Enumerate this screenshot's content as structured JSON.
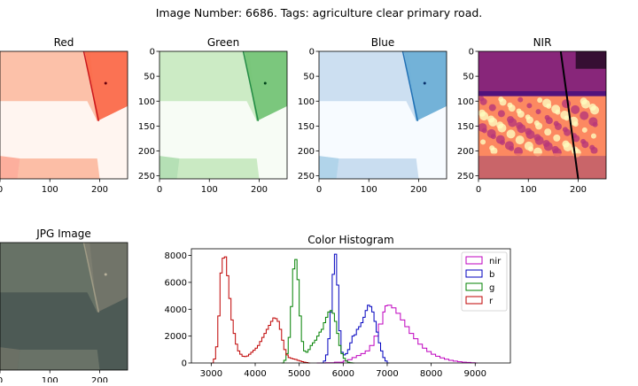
{
  "figure": {
    "suptitle": "Image Number: 6686. Tags: agriculture clear primary road."
  },
  "panels": [
    {
      "title": "Red",
      "yticks": [
        "0",
        "50",
        "100",
        "150",
        "200",
        "250"
      ],
      "xticks": [
        "0",
        "100",
        "200"
      ],
      "ramp": [
        "#fff5f0",
        "#fcbba1",
        "#fb6a4a",
        "#cb181d",
        "#67000d"
      ]
    },
    {
      "title": "Green",
      "yticks": [
        "0",
        "50",
        "100",
        "150",
        "200",
        "250"
      ],
      "xticks": [
        "0",
        "100",
        "200"
      ],
      "ramp": [
        "#f7fcf5",
        "#c7e9c0",
        "#74c476",
        "#238b45",
        "#00441b"
      ]
    },
    {
      "title": "Blue",
      "yticks": [
        "0",
        "50",
        "100",
        "150",
        "200",
        "250"
      ],
      "xticks": [
        "0",
        "100",
        "200"
      ],
      "ramp": [
        "#f7fbff",
        "#c6dbef",
        "#6baed6",
        "#2171b5",
        "#08306b"
      ]
    },
    {
      "title": "NIR",
      "yticks": [
        "0",
        "50",
        "100",
        "150",
        "200",
        "250"
      ],
      "xticks": [
        "0",
        "100",
        "200"
      ],
      "ramp": [
        "#000004",
        "#51127c",
        "#b73779",
        "#fc8961",
        "#fcfdbf"
      ]
    },
    {
      "title": "JPG Image",
      "xticks": [
        "0",
        "100",
        "200"
      ],
      "ramp": [
        "#4d5a55",
        "#6a7468",
        "#8a8676",
        "#a09c86",
        "#b9b29c"
      ]
    }
  ],
  "chart_data": {
    "type": "line",
    "title": "Color Histogram",
    "xlabel": "",
    "ylabel": "",
    "xlim": [
      2550,
      9800
    ],
    "ylim": [
      0,
      8500
    ],
    "xticks": [
      "3000",
      "4000",
      "5000",
      "6000",
      "7000",
      "8000",
      "9000"
    ],
    "yticks": [
      "0",
      "2000",
      "4000",
      "6000",
      "8000"
    ],
    "legend_position": "upper right",
    "series": [
      {
        "name": "nir",
        "color": "#bf00bf",
        "x": [
          5400,
          5600,
          5800,
          6000,
          6100,
          6200,
          6300,
          6400,
          6500,
          6600,
          6700,
          6800,
          6900,
          6950,
          7000,
          7100,
          7200,
          7300,
          7400,
          7500,
          7600,
          7700,
          7800,
          7900,
          8000,
          8100,
          8200,
          8300,
          8400,
          8500,
          8600,
          8700,
          8800,
          8900,
          9000
        ],
        "values": [
          0,
          20,
          60,
          150,
          250,
          400,
          550,
          700,
          900,
          1300,
          2000,
          2900,
          3800,
          4250,
          4300,
          4100,
          3700,
          3200,
          2700,
          2200,
          1800,
          1400,
          1100,
          850,
          650,
          500,
          380,
          280,
          200,
          140,
          90,
          60,
          40,
          20,
          0
        ]
      },
      {
        "name": "b",
        "color": "#0000bf",
        "x": [
          5500,
          5550,
          5600,
          5650,
          5700,
          5750,
          5800,
          5850,
          5900,
          5950,
          6000,
          6050,
          6100,
          6150,
          6200,
          6250,
          6300,
          6350,
          6400,
          6450,
          6500,
          6550,
          6600,
          6650,
          6700,
          6750,
          6800,
          6850,
          6900,
          6950,
          7000
        ],
        "values": [
          0,
          150,
          600,
          1800,
          3800,
          6600,
          8100,
          5800,
          2400,
          800,
          600,
          700,
          1000,
          1500,
          2000,
          2100,
          2500,
          2700,
          3000,
          3400,
          3900,
          4300,
          4200,
          3800,
          3100,
          2300,
          1500,
          900,
          400,
          150,
          0
        ]
      },
      {
        "name": "g",
        "color": "#008000",
        "x": [
          4600,
          4650,
          4700,
          4750,
          4800,
          4850,
          4900,
          4950,
          5000,
          5050,
          5100,
          5150,
          5200,
          5250,
          5300,
          5350,
          5400,
          5450,
          5500,
          5550,
          5600,
          5650,
          5700,
          5750,
          5800,
          5850,
          5900,
          5950,
          6000,
          6050,
          6100,
          6150,
          6200
        ],
        "values": [
          0,
          200,
          700,
          1900,
          4200,
          7000,
          7700,
          6200,
          3500,
          1600,
          900,
          800,
          1000,
          1300,
          1500,
          1700,
          2000,
          2300,
          2500,
          3000,
          3400,
          3800,
          3900,
          3700,
          3100,
          2200,
          1300,
          700,
          350,
          150,
          50,
          20,
          0
        ]
      },
      {
        "name": "r",
        "color": "#bf0000",
        "x": [
          3000,
          3050,
          3100,
          3150,
          3200,
          3250,
          3300,
          3350,
          3400,
          3450,
          3500,
          3550,
          3600,
          3650,
          3700,
          3750,
          3800,
          3850,
          3900,
          3950,
          4000,
          4050,
          4100,
          4150,
          4200,
          4250,
          4300,
          4350,
          4400,
          4450,
          4500,
          4550,
          4600,
          4650,
          4700,
          4750,
          4800,
          4850,
          4900,
          4950,
          5000,
          5050,
          5100,
          5150,
          5200
        ],
        "values": [
          0,
          300,
          1200,
          3500,
          6700,
          7800,
          7900,
          6500,
          4800,
          3200,
          2200,
          1400,
          900,
          650,
          500,
          480,
          520,
          650,
          800,
          950,
          1100,
          1300,
          1600,
          1900,
          2200,
          2500,
          2800,
          3100,
          3350,
          3300,
          3100,
          2500,
          1700,
          1000,
          600,
          400,
          350,
          300,
          260,
          200,
          150,
          100,
          60,
          30,
          0
        ]
      }
    ]
  }
}
